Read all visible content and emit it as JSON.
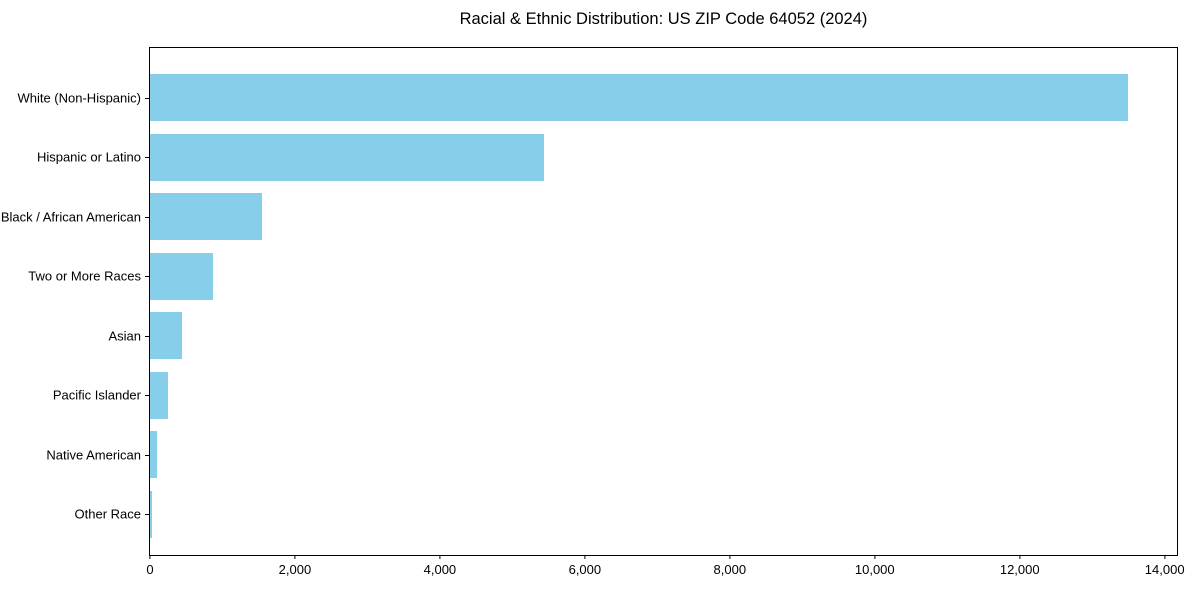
{
  "title": "Racial & Ethnic Distribution: US ZIP Code 64052 (2024)",
  "chart_data": {
    "type": "bar",
    "orientation": "horizontal",
    "title": "Racial & Ethnic Distribution: US ZIP Code 64052 (2024)",
    "xlabel": "",
    "ylabel": "",
    "categories": [
      "White (Non-Hispanic)",
      "Hispanic or Latino",
      "Black / African American",
      "Two or More Races",
      "Asian",
      "Pacific Islander",
      "Native American",
      "Other Race"
    ],
    "values": [
      13490,
      5440,
      1550,
      870,
      435,
      255,
      90,
      30
    ],
    "xlim": [
      0,
      14170
    ],
    "x_ticks": [
      0,
      2000,
      4000,
      6000,
      8000,
      10000,
      12000,
      14000
    ],
    "x_tick_labels": [
      "0",
      "2,000",
      "4,000",
      "6,000",
      "8,000",
      "10,000",
      "12,000",
      "14,000"
    ],
    "bar_color": "#87CEEB",
    "spine_color": "#000000",
    "text_color": "#000000",
    "grid": false,
    "legend": null
  }
}
